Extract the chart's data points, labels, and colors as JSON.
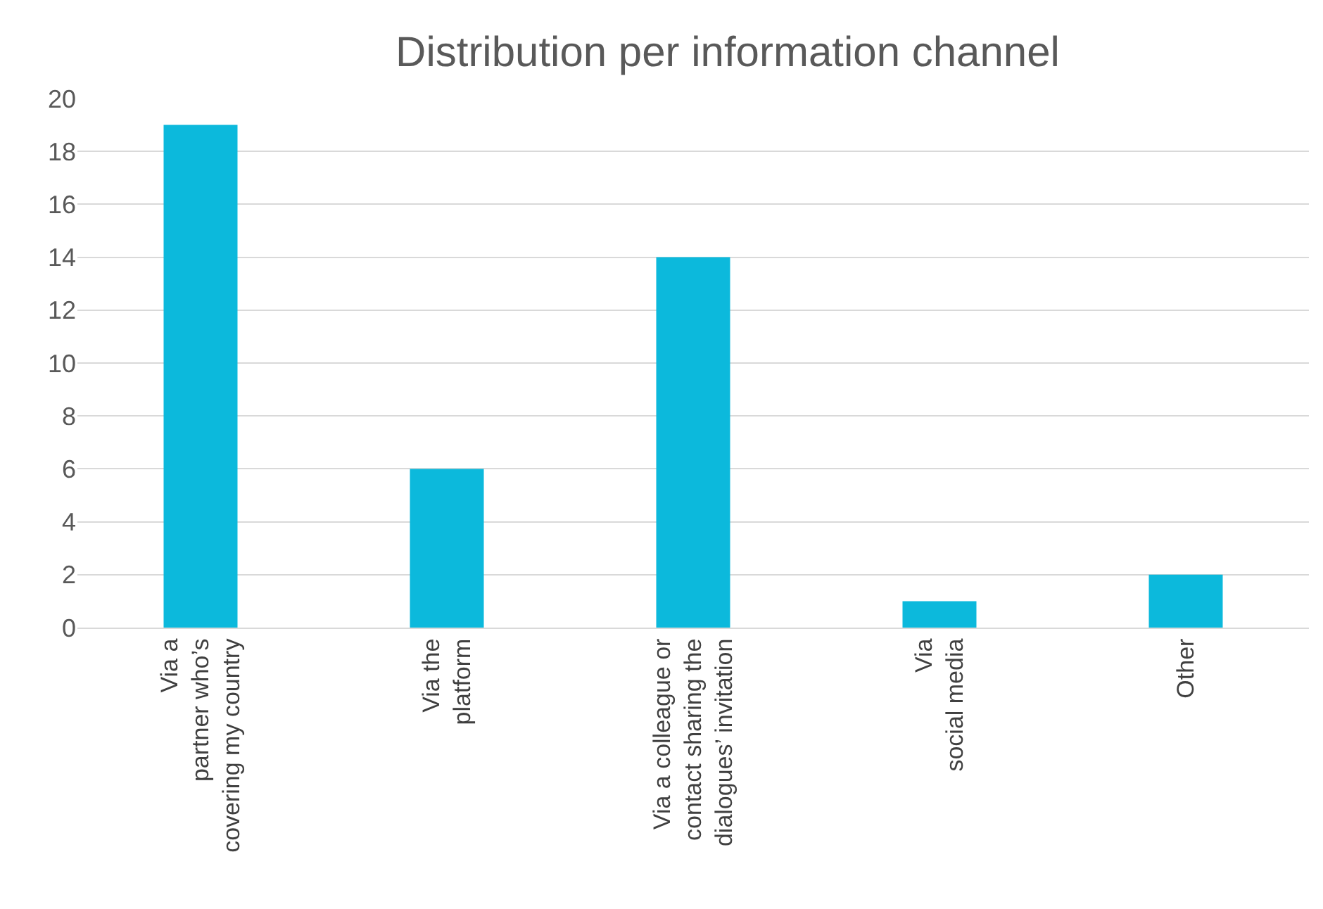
{
  "chart_data": {
    "type": "bar",
    "title": "Distribution per information channel",
    "categories": [
      "Via a\npartner who’s\ncovering my country",
      "Via the\nplatform",
      "Via a colleague or\ncontact sharing the\ndialogues’ invitation",
      "Via\nsocial media",
      "Other"
    ],
    "values": [
      19,
      6,
      14,
      1,
      2
    ],
    "color": "#0cb9dc",
    "ylim": [
      0,
      20
    ],
    "yticks": [
      0,
      2,
      4,
      6,
      8,
      10,
      12,
      14,
      16,
      18,
      20
    ],
    "grid": "y"
  }
}
